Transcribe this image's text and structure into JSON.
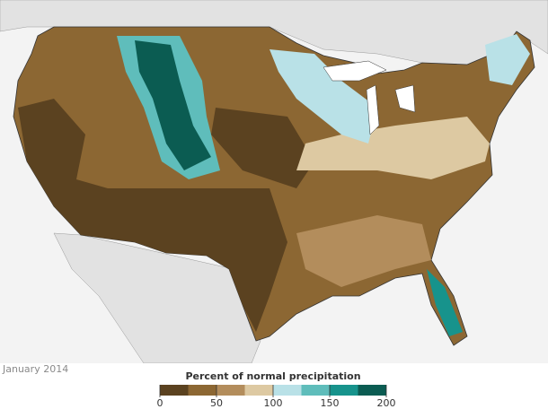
{
  "caption": "January 2014",
  "legend": {
    "title": "Percent of normal precipitation",
    "bins": [
      0,
      25,
      50,
      75,
      100,
      125,
      150,
      175,
      200
    ],
    "colors": [
      "#5b4220",
      "#8c6733",
      "#b38d5c",
      "#ddc9a2",
      "#b9e1e7",
      "#5fbdbb",
      "#17938c",
      "#0b5c52"
    ],
    "ticks": [
      0,
      50,
      100,
      150,
      200
    ]
  }
}
